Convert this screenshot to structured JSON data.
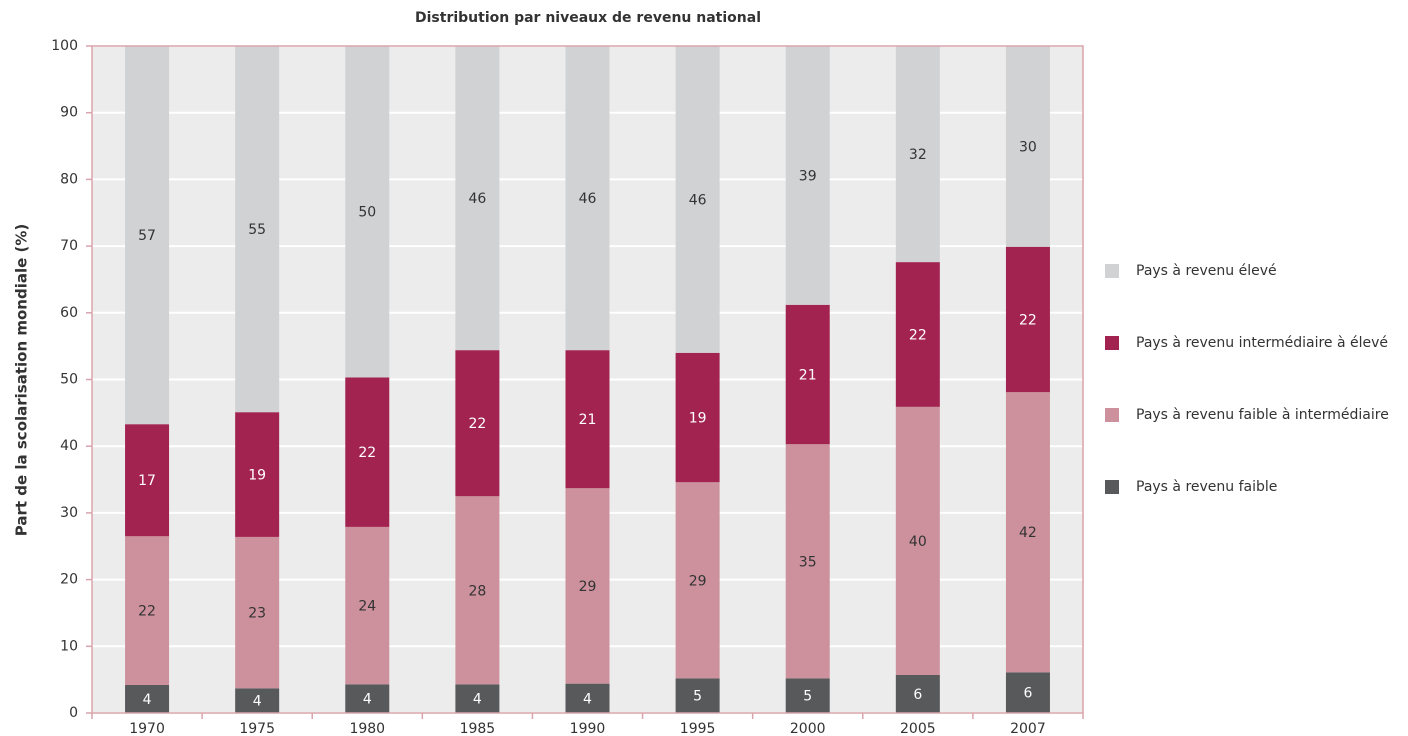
{
  "chart_data": {
    "type": "stacked_bar",
    "title": "Distribution par niveaux de revenu national",
    "y_label": "Part de la scolarisation mondiale (%)",
    "categories": [
      "1970",
      "1975",
      "1980",
      "1985",
      "1990",
      "1995",
      "2000",
      "2005",
      "2007"
    ],
    "series": [
      {
        "name": "Pays à revenu faible",
        "color": "#58595b",
        "values": [
          4.2,
          3.7,
          4.3,
          4.3,
          4.4,
          5.2,
          5.2,
          5.7,
          6.1
        ],
        "value_labels": [
          "4",
          "4",
          "4",
          "4",
          "4",
          "5",
          "5",
          "6",
          "6"
        ]
      },
      {
        "name": "Pays à revenu faible à intermédiaire",
        "color": "#cc919c",
        "values": [
          22.3,
          22.7,
          23.6,
          28.2,
          29.3,
          29.4,
          35.1,
          40.2,
          42.0
        ],
        "value_labels": [
          "22",
          "23",
          "24",
          "28",
          "29",
          "29",
          "35",
          "40",
          "42"
        ]
      },
      {
        "name": "Pays à revenu intermédiaire à élevé",
        "color": "#a32350",
        "values": [
          16.8,
          18.7,
          22.4,
          21.9,
          20.7,
          19.4,
          20.9,
          21.7,
          21.8
        ],
        "value_labels": [
          "17",
          "19",
          "22",
          "22",
          "21",
          "19",
          "21",
          "22",
          "22"
        ]
      },
      {
        "name": "Pays à revenu élevé",
        "color": "#d1d2d4",
        "values": [
          56.7,
          54.9,
          49.7,
          45.6,
          45.6,
          46.0,
          38.8,
          32.4,
          30.1
        ],
        "value_labels": [
          "57",
          "55",
          "50",
          "46",
          "46",
          "46",
          "39",
          "32",
          "30"
        ]
      }
    ],
    "ylim": [
      0,
      100
    ],
    "yticks": [
      0,
      10,
      20,
      30,
      40,
      50,
      60,
      70,
      80,
      90,
      100
    ],
    "grid": true,
    "legend": "right"
  }
}
